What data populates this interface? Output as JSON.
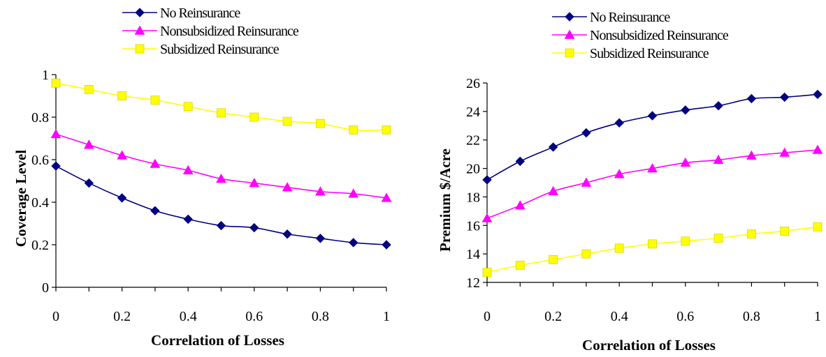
{
  "chart_data": [
    {
      "type": "line",
      "xlabel": "Correlation of Losses",
      "ylabel": "Coverage Level",
      "xlim": [
        0,
        1
      ],
      "ylim": [
        0,
        1
      ],
      "x": [
        0,
        0.1,
        0.2,
        0.3,
        0.4,
        0.5,
        0.6,
        0.7,
        0.8,
        0.9,
        1
      ],
      "x_ticks": [
        "0",
        "0.2",
        "0.4",
        "0.6",
        "0.8",
        "1"
      ],
      "y_ticks": [
        "0",
        "0.2",
        "0.4",
        "0.6",
        "0.8",
        "1"
      ],
      "legend_position": "top",
      "series": [
        {
          "name": "No Reinsurance",
          "color": "#000080",
          "marker": "diamond",
          "values": [
            0.57,
            0.49,
            0.42,
            0.36,
            0.32,
            0.29,
            0.28,
            0.25,
            0.23,
            0.21,
            0.2
          ]
        },
        {
          "name": "Nonsubsidized Reinsurance",
          "color": "#ff00ff",
          "marker": "triangle",
          "values": [
            0.72,
            0.67,
            0.62,
            0.58,
            0.55,
            0.51,
            0.49,
            0.47,
            0.45,
            0.44,
            0.42
          ]
        },
        {
          "name": "Subsidized Reinsurance",
          "color": "#ffff00",
          "marker": "square",
          "values": [
            0.96,
            0.93,
            0.9,
            0.88,
            0.85,
            0.82,
            0.8,
            0.78,
            0.77,
            0.74,
            0.74
          ]
        }
      ]
    },
    {
      "type": "line",
      "xlabel": "Correlation of Losses",
      "ylabel": "Premium $/Acre",
      "xlim": [
        0,
        1
      ],
      "ylim": [
        12,
        26
      ],
      "x": [
        0,
        0.1,
        0.2,
        0.3,
        0.4,
        0.5,
        0.6,
        0.7,
        0.8,
        0.9,
        1
      ],
      "x_ticks": [
        "0",
        "0.2",
        "0.4",
        "0.6",
        "0.8",
        "1"
      ],
      "y_ticks": [
        "12",
        "14",
        "16",
        "18",
        "20",
        "22",
        "24",
        "26"
      ],
      "legend_position": "top",
      "series": [
        {
          "name": "No Reinsurance",
          "color": "#000080",
          "marker": "diamond",
          "values": [
            19.2,
            20.5,
            21.5,
            22.5,
            23.2,
            23.7,
            24.1,
            24.4,
            24.9,
            25.0,
            25.2
          ]
        },
        {
          "name": "Nonsubsidized Reinsurance",
          "color": "#ff00ff",
          "marker": "triangle",
          "values": [
            16.5,
            17.4,
            18.4,
            19.0,
            19.6,
            20.0,
            20.4,
            20.6,
            20.9,
            21.1,
            21.3
          ]
        },
        {
          "name": "Subsidized Reinsurance",
          "color": "#ffff00",
          "marker": "square",
          "values": [
            12.7,
            13.2,
            13.6,
            14.0,
            14.4,
            14.7,
            14.9,
            15.1,
            15.4,
            15.6,
            15.9
          ]
        }
      ]
    }
  ]
}
